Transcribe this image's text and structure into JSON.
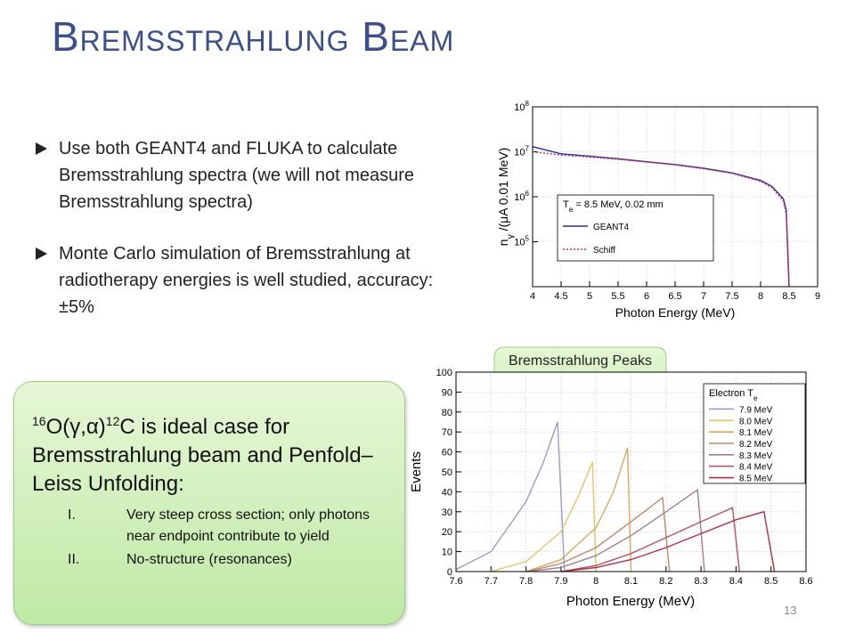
{
  "title": "Bremsstrahlung Beam",
  "bullets": [
    "Use both GEANT4 and FLUKA to calculate Bremsstrahlung spectra (we will not measure Bremsstrahlung spectra)",
    "Monte Carlo simulation of Bremsstrahlung at radiotherapy energies is well studied, accuracy: ±5%"
  ],
  "box": {
    "heading": {
      "mass_a": "16",
      "a": "O(γ,α)",
      "mass_b": "12",
      "b": "C is ideal case for Bremsstrahlung beam and Penfold–Leiss Unfolding:"
    },
    "items": [
      {
        "numeral": "I.",
        "text": "Very steep cross section; only photons near endpoint contribute to yield"
      },
      {
        "numeral": "II.",
        "text": "No-structure (resonances)"
      }
    ]
  },
  "callout": "Bremsstrahlung Peaks",
  "page_number": "13",
  "chart_data": [
    {
      "type": "line",
      "log_y": true,
      "grid": true,
      "legend_corner": "lower left",
      "xlabel": "Photon Energy (MeV)",
      "ylabel": {
        "main": "n",
        "sub": "γ",
        "rest": " /(μA 0.01 MeV)"
      },
      "legend_title": {
        "main": "T",
        "sub": "e",
        "rest": " = 8.5 MeV, 0.02 mm"
      },
      "xlim": [
        4,
        9
      ],
      "xticks": [
        4,
        4.5,
        5,
        5.5,
        6,
        6.5,
        7,
        7.5,
        8,
        8.5,
        9
      ],
      "ylim": [
        10000,
        100000000
      ],
      "yticks": [
        {
          "value": 100000,
          "label": "10",
          "sup": "5"
        },
        {
          "value": 1000000,
          "label": "10",
          "sup": "6"
        },
        {
          "value": 10000000,
          "label": "10",
          "sup": "7"
        },
        {
          "value": 100000000,
          "label": "10",
          "sup": "8"
        }
      ],
      "series": [
        {
          "name": "GEANT4",
          "color": "#1f2fb0",
          "line_style": "solid",
          "x": [
            4,
            4.5,
            5,
            5.5,
            6,
            6.5,
            7,
            7.5,
            8,
            8.2,
            8.4,
            8.45,
            8.5
          ],
          "values": [
            13000000,
            9000000,
            8000000,
            7000000,
            6000000,
            5200000,
            4300000,
            3400000,
            2300000,
            1700000,
            900000,
            500000,
            10000
          ]
        },
        {
          "name": "Schiff",
          "color": "#e03030",
          "line_style": "dotted",
          "x": [
            4,
            4.5,
            5,
            5.5,
            6,
            6.5,
            7,
            7.5,
            8,
            8.2,
            8.4,
            8.45,
            8.5
          ],
          "values": [
            10000000,
            8500000,
            7600000,
            6800000,
            5900000,
            5100000,
            4200000,
            3300000,
            2200000,
            1600000,
            800000,
            400000,
            10000
          ]
        }
      ]
    },
    {
      "type": "line",
      "log_y": false,
      "grid": true,
      "legend_corner": "upper right",
      "xlabel": "Photon Energy (MeV)",
      "ylabel": "Events",
      "legend_title": {
        "main": "Electron T",
        "sub": "e",
        "rest": ""
      },
      "xlim": [
        7.6,
        8.6
      ],
      "xticks": [
        7.6,
        7.7,
        7.8,
        7.9,
        8,
        8.1,
        8.2,
        8.3,
        8.4,
        8.5,
        8.6
      ],
      "ylim": [
        0,
        100
      ],
      "yticks": [
        0,
        10,
        20,
        30,
        40,
        50,
        60,
        70,
        80,
        90,
        100
      ],
      "series": [
        {
          "name": "7.9 MeV",
          "color": "#9a9ccc",
          "line_style": "solid",
          "x": [
            7.6,
            7.7,
            7.8,
            7.85,
            7.89,
            7.91
          ],
          "values": [
            1,
            10,
            35,
            55,
            75,
            0
          ]
        },
        {
          "name": "8.0 MeV",
          "color": "#e6c46a",
          "line_style": "solid",
          "x": [
            7.7,
            7.8,
            7.9,
            7.95,
            7.99,
            8.0
          ],
          "values": [
            0,
            5,
            20,
            38,
            55,
            0
          ]
        },
        {
          "name": "8.1 MeV",
          "color": "#d8aa60",
          "line_style": "solid",
          "x": [
            7.8,
            7.9,
            8.0,
            8.05,
            8.09,
            8.1
          ],
          "values": [
            0,
            6,
            22,
            40,
            62,
            0
          ]
        },
        {
          "name": "8.2 MeV",
          "color": "#c48a6c",
          "line_style": "solid",
          "x": [
            7.8,
            7.9,
            8.0,
            8.1,
            8.19,
            8.21
          ],
          "values": [
            0,
            4,
            12,
            25,
            37,
            0
          ]
        },
        {
          "name": "8.3 MeV",
          "color": "#a08090",
          "line_style": "solid",
          "x": [
            7.8,
            7.9,
            8.0,
            8.1,
            8.2,
            8.29,
            8.31
          ],
          "values": [
            0,
            2,
            8,
            18,
            30,
            41,
            0
          ]
        },
        {
          "name": "8.4 MeV",
          "color": "#b05666",
          "line_style": "solid",
          "x": [
            7.9,
            8.0,
            8.1,
            8.2,
            8.3,
            8.39,
            8.41
          ],
          "values": [
            0,
            3,
            9,
            17,
            25,
            32,
            0
          ]
        },
        {
          "name": "8.5 MeV",
          "color": "#b03040",
          "line_style": "solid",
          "x": [
            7.9,
            8.0,
            8.1,
            8.2,
            8.3,
            8.4,
            8.48,
            8.51
          ],
          "values": [
            0,
            2,
            6,
            12,
            19,
            26,
            30,
            0
          ]
        }
      ]
    }
  ]
}
